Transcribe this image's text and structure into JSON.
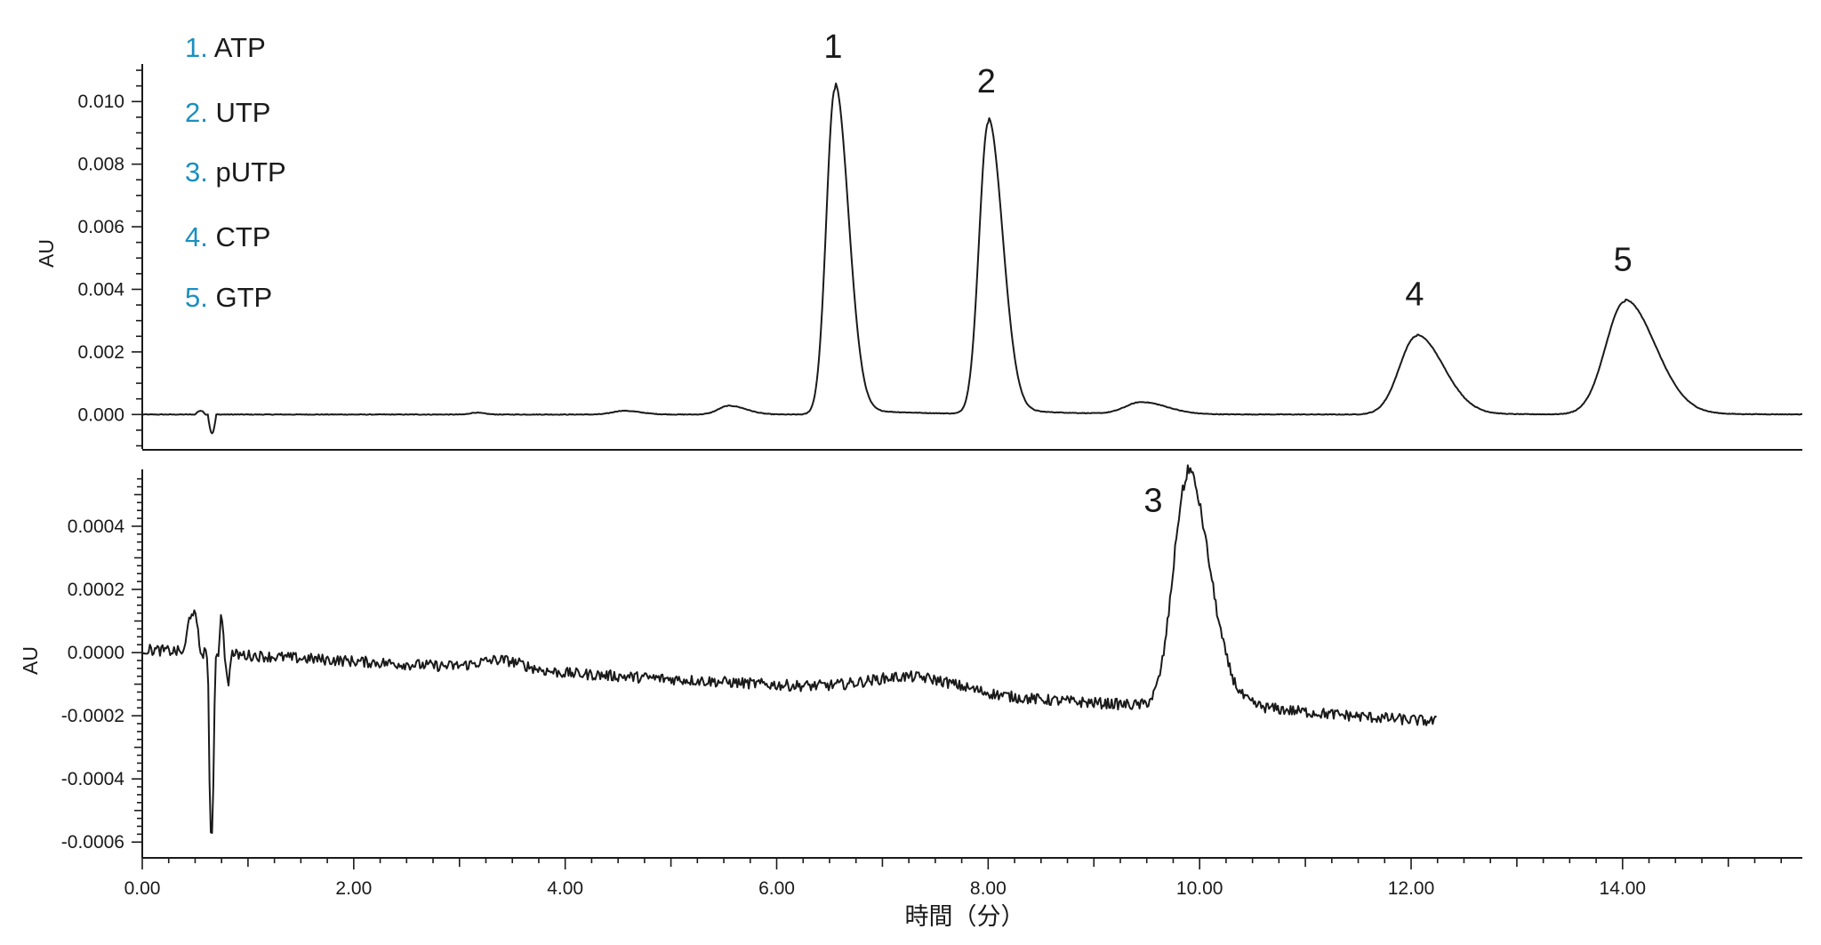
{
  "chart_data": [
    {
      "type": "line",
      "ylabel": "AU",
      "xlim": [
        0,
        15.7
      ],
      "ylim": [
        -0.0011,
        0.0112
      ],
      "yticks": [
        "0.000",
        "0.002",
        "0.004",
        "0.006",
        "0.008",
        "0.010"
      ],
      "ytick_values": [
        0,
        0.002,
        0.004,
        0.006,
        0.008,
        0.01
      ],
      "legend": [
        {
          "num": "1.",
          "name": "ATP"
        },
        {
          "num": "2.",
          "name": "UTP"
        },
        {
          "num": "3.",
          "name": "pUTP"
        },
        {
          "num": "4.",
          "name": "CTP"
        },
        {
          "num": "5.",
          "name": "GTP"
        }
      ],
      "baseline": 0.0,
      "peaks": [
        {
          "label": "1",
          "rt": 6.55,
          "height": 0.0104,
          "width": 0.08
        },
        {
          "label": "2",
          "rt": 8.0,
          "height": 0.0093,
          "width": 0.085
        },
        {
          "label": "4",
          "rt": 12.05,
          "height": 0.0025,
          "width": 0.16
        },
        {
          "label": "5",
          "rt": 14.02,
          "height": 0.0036,
          "width": 0.18
        }
      ],
      "minor_peaks": [
        {
          "rt": 3.15,
          "height": 6e-05,
          "width": 0.05
        },
        {
          "rt": 4.55,
          "height": 0.00012,
          "width": 0.1
        },
        {
          "rt": 5.55,
          "height": 0.00028,
          "width": 0.1
        },
        {
          "rt": 9.45,
          "height": 0.00038,
          "width": 0.15
        }
      ],
      "end_x": 15.7
    },
    {
      "type": "line",
      "ylabel": "AU",
      "xlabel": "時間（分）",
      "xlim": [
        0,
        15.7
      ],
      "ylim": [
        -0.00065,
        0.00058
      ],
      "xticks": [
        "0.00",
        "2.00",
        "4.00",
        "6.00",
        "8.00",
        "10.00",
        "12.00",
        "14.00"
      ],
      "xtick_values": [
        0,
        2,
        4,
        6,
        8,
        10,
        12,
        14
      ],
      "yticks": [
        "-0.0006",
        "-0.0004",
        "-0.0002",
        "0.0000",
        "0.0002",
        "0.0004"
      ],
      "ytick_values": [
        -0.0006,
        -0.0004,
        -0.0002,
        0.0,
        0.0002,
        0.0004
      ],
      "baseline_start": 1e-05,
      "baseline_end": -0.00022,
      "peaks": [
        {
          "label": "3",
          "rt": 9.88,
          "height": 0.00072,
          "width": 0.13
        }
      ],
      "end_x": 12.25
    }
  ]
}
